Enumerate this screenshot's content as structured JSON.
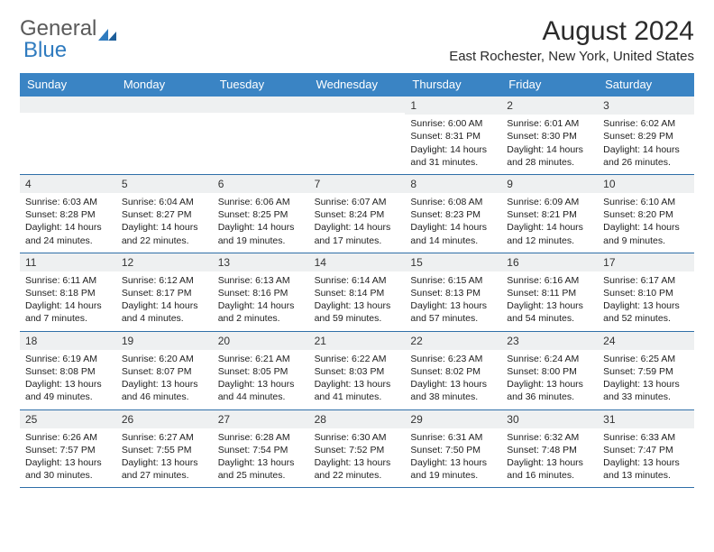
{
  "brand": {
    "word1": "General",
    "word2": "Blue"
  },
  "title": "August 2024",
  "location": "East Rochester, New York, United States",
  "colors": {
    "header_bg": "#3a84c4",
    "header_text": "#ffffff",
    "daynum_bg": "#eef0f1",
    "row_border": "#2f6fa8",
    "text": "#212121",
    "brand_gray": "#5a5a5a",
    "brand_blue": "#2f7bbf"
  },
  "weekdays": [
    "Sunday",
    "Monday",
    "Tuesday",
    "Wednesday",
    "Thursday",
    "Friday",
    "Saturday"
  ],
  "weeks": [
    [
      null,
      null,
      null,
      null,
      {
        "n": "1",
        "sunrise": "6:00 AM",
        "sunset": "8:31 PM",
        "daylight": "14 hours and 31 minutes."
      },
      {
        "n": "2",
        "sunrise": "6:01 AM",
        "sunset": "8:30 PM",
        "daylight": "14 hours and 28 minutes."
      },
      {
        "n": "3",
        "sunrise": "6:02 AM",
        "sunset": "8:29 PM",
        "daylight": "14 hours and 26 minutes."
      }
    ],
    [
      {
        "n": "4",
        "sunrise": "6:03 AM",
        "sunset": "8:28 PM",
        "daylight": "14 hours and 24 minutes."
      },
      {
        "n": "5",
        "sunrise": "6:04 AM",
        "sunset": "8:27 PM",
        "daylight": "14 hours and 22 minutes."
      },
      {
        "n": "6",
        "sunrise": "6:06 AM",
        "sunset": "8:25 PM",
        "daylight": "14 hours and 19 minutes."
      },
      {
        "n": "7",
        "sunrise": "6:07 AM",
        "sunset": "8:24 PM",
        "daylight": "14 hours and 17 minutes."
      },
      {
        "n": "8",
        "sunrise": "6:08 AM",
        "sunset": "8:23 PM",
        "daylight": "14 hours and 14 minutes."
      },
      {
        "n": "9",
        "sunrise": "6:09 AM",
        "sunset": "8:21 PM",
        "daylight": "14 hours and 12 minutes."
      },
      {
        "n": "10",
        "sunrise": "6:10 AM",
        "sunset": "8:20 PM",
        "daylight": "14 hours and 9 minutes."
      }
    ],
    [
      {
        "n": "11",
        "sunrise": "6:11 AM",
        "sunset": "8:18 PM",
        "daylight": "14 hours and 7 minutes."
      },
      {
        "n": "12",
        "sunrise": "6:12 AM",
        "sunset": "8:17 PM",
        "daylight": "14 hours and 4 minutes."
      },
      {
        "n": "13",
        "sunrise": "6:13 AM",
        "sunset": "8:16 PM",
        "daylight": "14 hours and 2 minutes."
      },
      {
        "n": "14",
        "sunrise": "6:14 AM",
        "sunset": "8:14 PM",
        "daylight": "13 hours and 59 minutes."
      },
      {
        "n": "15",
        "sunrise": "6:15 AM",
        "sunset": "8:13 PM",
        "daylight": "13 hours and 57 minutes."
      },
      {
        "n": "16",
        "sunrise": "6:16 AM",
        "sunset": "8:11 PM",
        "daylight": "13 hours and 54 minutes."
      },
      {
        "n": "17",
        "sunrise": "6:17 AM",
        "sunset": "8:10 PM",
        "daylight": "13 hours and 52 minutes."
      }
    ],
    [
      {
        "n": "18",
        "sunrise": "6:19 AM",
        "sunset": "8:08 PM",
        "daylight": "13 hours and 49 minutes."
      },
      {
        "n": "19",
        "sunrise": "6:20 AM",
        "sunset": "8:07 PM",
        "daylight": "13 hours and 46 minutes."
      },
      {
        "n": "20",
        "sunrise": "6:21 AM",
        "sunset": "8:05 PM",
        "daylight": "13 hours and 44 minutes."
      },
      {
        "n": "21",
        "sunrise": "6:22 AM",
        "sunset": "8:03 PM",
        "daylight": "13 hours and 41 minutes."
      },
      {
        "n": "22",
        "sunrise": "6:23 AM",
        "sunset": "8:02 PM",
        "daylight": "13 hours and 38 minutes."
      },
      {
        "n": "23",
        "sunrise": "6:24 AM",
        "sunset": "8:00 PM",
        "daylight": "13 hours and 36 minutes."
      },
      {
        "n": "24",
        "sunrise": "6:25 AM",
        "sunset": "7:59 PM",
        "daylight": "13 hours and 33 minutes."
      }
    ],
    [
      {
        "n": "25",
        "sunrise": "6:26 AM",
        "sunset": "7:57 PM",
        "daylight": "13 hours and 30 minutes."
      },
      {
        "n": "26",
        "sunrise": "6:27 AM",
        "sunset": "7:55 PM",
        "daylight": "13 hours and 27 minutes."
      },
      {
        "n": "27",
        "sunrise": "6:28 AM",
        "sunset": "7:54 PM",
        "daylight": "13 hours and 25 minutes."
      },
      {
        "n": "28",
        "sunrise": "6:30 AM",
        "sunset": "7:52 PM",
        "daylight": "13 hours and 22 minutes."
      },
      {
        "n": "29",
        "sunrise": "6:31 AM",
        "sunset": "7:50 PM",
        "daylight": "13 hours and 19 minutes."
      },
      {
        "n": "30",
        "sunrise": "6:32 AM",
        "sunset": "7:48 PM",
        "daylight": "13 hours and 16 minutes."
      },
      {
        "n": "31",
        "sunrise": "6:33 AM",
        "sunset": "7:47 PM",
        "daylight": "13 hours and 13 minutes."
      }
    ]
  ],
  "labels": {
    "sunrise": "Sunrise: ",
    "sunset": "Sunset: ",
    "daylight": "Daylight: "
  }
}
